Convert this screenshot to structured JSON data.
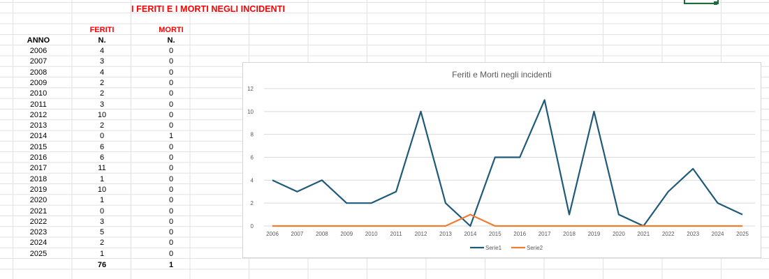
{
  "sheet": {
    "title": "I FERITI E I MORTI NEGLI INCIDENTI",
    "header_feriti": "FERITI",
    "header_morti": "MORTI",
    "col_anno": "ANNO",
    "col_n1": "N.",
    "col_n2": "N.",
    "rows": [
      {
        "anno": "2006",
        "feriti": "4",
        "morti": "0"
      },
      {
        "anno": "2007",
        "feriti": "3",
        "morti": "0"
      },
      {
        "anno": "2008",
        "feriti": "4",
        "morti": "0"
      },
      {
        "anno": "2009",
        "feriti": "2",
        "morti": "0"
      },
      {
        "anno": "2010",
        "feriti": "2",
        "morti": "0"
      },
      {
        "anno": "2011",
        "feriti": "3",
        "morti": "0"
      },
      {
        "anno": "2012",
        "feriti": "10",
        "morti": "0"
      },
      {
        "anno": "2013",
        "feriti": "2",
        "morti": "0"
      },
      {
        "anno": "2014",
        "feriti": "0",
        "morti": "1"
      },
      {
        "anno": "2015",
        "feriti": "6",
        "morti": "0"
      },
      {
        "anno": "2016",
        "feriti": "6",
        "morti": "0"
      },
      {
        "anno": "2017",
        "feriti": "11",
        "morti": "0"
      },
      {
        "anno": "2018",
        "feriti": "1",
        "morti": "0"
      },
      {
        "anno": "2019",
        "feriti": "10",
        "morti": "0"
      },
      {
        "anno": "2020",
        "feriti": "1",
        "morti": "0"
      },
      {
        "anno": "2021",
        "feriti": "0",
        "morti": "0"
      },
      {
        "anno": "2022",
        "feriti": "3",
        "morti": "0"
      },
      {
        "anno": "2023",
        "feriti": "5",
        "morti": "0"
      },
      {
        "anno": "2024",
        "feriti": "2",
        "morti": "0"
      },
      {
        "anno": "2025",
        "feriti": "1",
        "morti": "0"
      }
    ],
    "total_feriti": "76",
    "total_morti": "1"
  },
  "chart_data": {
    "type": "line",
    "title": "Feriti e Morti negli incidenti",
    "x": [
      "2006",
      "2007",
      "2008",
      "2009",
      "2010",
      "2011",
      "2012",
      "2013",
      "2014",
      "2015",
      "2016",
      "2017",
      "2018",
      "2019",
      "2020",
      "2021",
      "2022",
      "2023",
      "2024",
      "2025"
    ],
    "series": [
      {
        "name": "Serie1",
        "color": "#1f5a78",
        "values": [
          4,
          3,
          4,
          2,
          2,
          3,
          10,
          2,
          0,
          6,
          6,
          11,
          1,
          10,
          1,
          0,
          3,
          5,
          2,
          1
        ]
      },
      {
        "name": "Serie2",
        "color": "#ed7d31",
        "values": [
          0,
          0,
          0,
          0,
          0,
          0,
          0,
          0,
          1,
          0,
          0,
          0,
          0,
          0,
          0,
          0,
          0,
          0,
          0,
          0
        ]
      }
    ],
    "ylim": [
      0,
      12
    ],
    "yticks": [
      "0",
      "2",
      "4",
      "6",
      "8",
      "10",
      "12"
    ],
    "grid": true,
    "legend": "bottom"
  }
}
